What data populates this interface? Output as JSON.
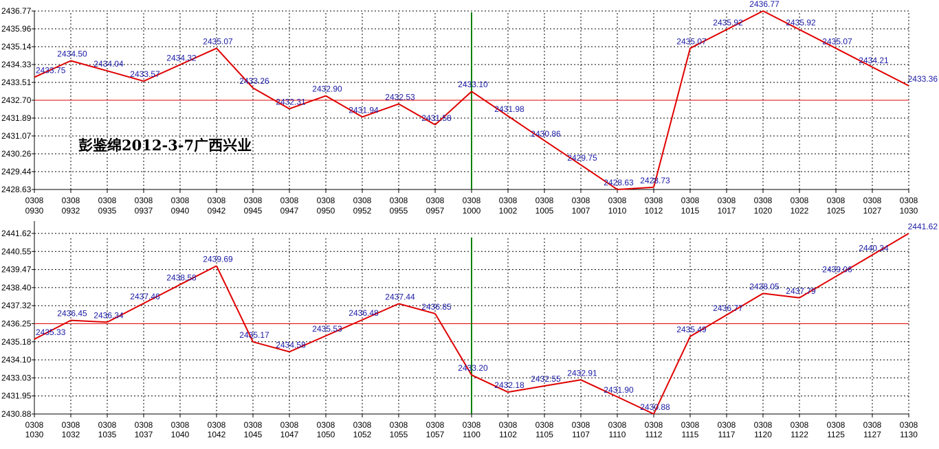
{
  "annotation": "彭鉴绵2012-3-7广西兴业",
  "colors": {
    "line": "#e00000",
    "reference_line": "#e00000",
    "divider": "#008000",
    "grid": "#000000",
    "data_label": "#1a1aa6",
    "axis_text": "#000000"
  },
  "chart_data": [
    {
      "type": "line",
      "title": "",
      "grid": true,
      "x": [
        "0308 0930",
        "0308 0932",
        "0308 0935",
        "0308 0937",
        "0308 0940",
        "0308 0942",
        "0308 0945",
        "0308 0947",
        "0308 0950",
        "0308 0952",
        "0308 0955",
        "0308 0957",
        "0308 1000",
        "0308 1002",
        "0308 1005",
        "0308 1007",
        "0308 1010",
        "0308 1012",
        "0308 1015",
        "0308 1017",
        "0308 1020",
        "0308 1022",
        "0308 1025",
        "0308 1027",
        "0308 1030"
      ],
      "x_tick_top": [
        "0308",
        "0308",
        "0308",
        "0308",
        "0308",
        "0308",
        "0308",
        "0308",
        "0308",
        "0308",
        "0308",
        "0308",
        "0308",
        "0308",
        "0308",
        "0308",
        "0308",
        "0308",
        "0308",
        "0308",
        "0308",
        "0308",
        "0308",
        "0308",
        "0308"
      ],
      "x_tick_bottom": [
        "0930",
        "0932",
        "0935",
        "0937",
        "0940",
        "0942",
        "0945",
        "0947",
        "0950",
        "0952",
        "0955",
        "0957",
        "1000",
        "1002",
        "1005",
        "1007",
        "1010",
        "1012",
        "1015",
        "1017",
        "1020",
        "1022",
        "1025",
        "1027",
        "1030"
      ],
      "y_ticks": [
        "2436.77",
        "2435.96",
        "2435.14",
        "2434.33",
        "2433.51",
        "2432.70",
        "2431.89",
        "2431.07",
        "2430.26",
        "2429.44",
        "2428.63"
      ],
      "ylim": [
        2428.63,
        2436.77
      ],
      "reference_value": 2432.7,
      "divider_index": 12,
      "points": [
        {
          "label": "2433.75",
          "value": 2433.75
        },
        {
          "label": "2434.50",
          "value": 2434.5
        },
        {
          "label": "2434.04",
          "value": 2434.04
        },
        {
          "label": "2433.57",
          "value": 2433.57
        },
        {
          "label": "2434.32",
          "value": 2434.32
        },
        {
          "label": "2435.07",
          "value": 2435.07
        },
        {
          "label": "2433.26",
          "value": 2433.26
        },
        {
          "label": "2432.31",
          "value": 2432.31
        },
        {
          "label": "2432.90",
          "value": 2432.9
        },
        {
          "label": "2431.94",
          "value": 2431.94
        },
        {
          "label": "2432.53",
          "value": 2432.53
        },
        {
          "label": "2431.58",
          "value": 2431.58
        },
        {
          "label": "2433.10",
          "value": 2433.1
        },
        {
          "label": "2431.98",
          "value": 2431.98
        },
        {
          "label": "2430.86",
          "value": 2430.86
        },
        {
          "label": "2429.75",
          "value": 2429.75
        },
        {
          "label": "2428.63",
          "value": 2428.63
        },
        {
          "label": "2428.73",
          "value": 2428.73
        },
        {
          "label": "2435.07",
          "value": 2435.07
        },
        {
          "label": "2435.92",
          "value": 2435.92
        },
        {
          "label": "2436.77",
          "value": 2436.77
        },
        {
          "label": "2435.92",
          "value": 2435.92
        },
        {
          "label": "2435.07",
          "value": 2435.07
        },
        {
          "label": "2434.21",
          "value": 2434.21
        },
        {
          "label": "2433.36",
          "value": 2433.36
        }
      ]
    },
    {
      "type": "line",
      "title": "",
      "grid": true,
      "x": [
        "0308 1030",
        "0308 1032",
        "0308 1035",
        "0308 1037",
        "0308 1040",
        "0308 1042",
        "0308 1045",
        "0308 1047",
        "0308 1050",
        "0308 1052",
        "0308 1055",
        "0308 1057",
        "0308 1100",
        "0308 1102",
        "0308 1105",
        "0308 1107",
        "0308 1110",
        "0308 1112",
        "0308 1115",
        "0308 1117",
        "0308 1120",
        "0308 1122",
        "0308 1125",
        "0308 1127",
        "0308 1130"
      ],
      "x_tick_top": [
        "0308",
        "0308",
        "0308",
        "0308",
        "0308",
        "0308",
        "0308",
        "0308",
        "0308",
        "0308",
        "0308",
        "0308",
        "0308",
        "0308",
        "0308",
        "0308",
        "0308",
        "0308",
        "0308",
        "0308",
        "0308",
        "0308",
        "0308",
        "0308",
        "0308"
      ],
      "x_tick_bottom": [
        "1030",
        "1032",
        "1035",
        "1037",
        "1040",
        "1042",
        "1045",
        "1047",
        "1050",
        "1052",
        "1055",
        "1057",
        "1100",
        "1102",
        "1105",
        "1107",
        "1110",
        "1112",
        "1115",
        "1117",
        "1120",
        "1122",
        "1125",
        "1127",
        "1130"
      ],
      "y_ticks": [
        "2441.62",
        "2440.55",
        "2439.47",
        "2438.40",
        "2437.32",
        "2436.25",
        "2435.18",
        "2434.10",
        "2433.03",
        "2431.95",
        "2430.88"
      ],
      "ylim": [
        2430.88,
        2441.62
      ],
      "reference_value": 2436.25,
      "divider_index": 12,
      "points": [
        {
          "label": "2435.33",
          "value": 2435.33
        },
        {
          "label": "2436.45",
          "value": 2436.45
        },
        {
          "label": "2436.34",
          "value": 2436.34
        },
        {
          "label": "2437.46",
          "value": 2437.46
        },
        {
          "label": "2438.58",
          "value": 2438.58
        },
        {
          "label": "2439.69",
          "value": 2439.69
        },
        {
          "label": "2435.17",
          "value": 2435.17
        },
        {
          "label": "2434.58",
          "value": 2434.58
        },
        {
          "label": "2435.53",
          "value": 2435.53
        },
        {
          "label": "2436.48",
          "value": 2436.48
        },
        {
          "label": "2437.44",
          "value": 2437.44
        },
        {
          "label": "2436.85",
          "value": 2436.85
        },
        {
          "label": "2433.20",
          "value": 2433.2
        },
        {
          "label": "2432.18",
          "value": 2432.18
        },
        {
          "label": "2432.55",
          "value": 2432.55
        },
        {
          "label": "2432.91",
          "value": 2432.91
        },
        {
          "label": "2431.90",
          "value": 2431.9
        },
        {
          "label": "2430.88",
          "value": 2430.88
        },
        {
          "label": "2435.49",
          "value": 2435.49
        },
        {
          "label": "2436.77",
          "value": 2436.77
        },
        {
          "label": "2438.05",
          "value": 2438.05
        },
        {
          "label": "2437.79",
          "value": 2437.79
        },
        {
          "label": "2439.06",
          "value": 2439.06
        },
        {
          "label": "2440.34",
          "value": 2440.34
        },
        {
          "label": "2441.62",
          "value": 2441.62
        }
      ]
    }
  ]
}
